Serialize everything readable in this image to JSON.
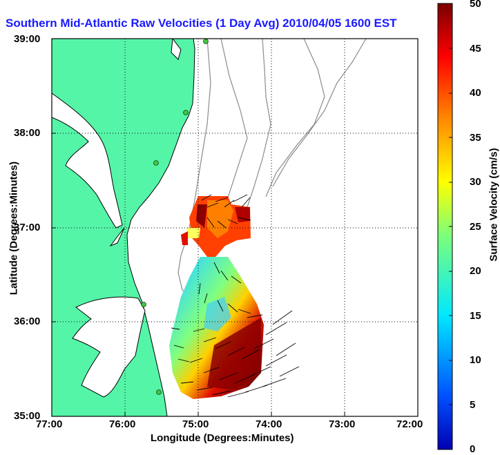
{
  "title": "Southern Mid-Atlantic Raw Velocities (1 Day Avg) 2010/04/05 1600 EST",
  "xlabel": "Longitude (Degrees:Minutes)",
  "ylabel": "Latitude (Degrees:Minutes)",
  "colorbar_label": "Surface Velocity (cm/s)",
  "x_ticks": [
    "77:00",
    "76:00",
    "75:00",
    "74:00",
    "73:00",
    "72:00"
  ],
  "y_ticks": [
    "39:00",
    "38:00",
    "37:00",
    "36:00",
    "35:00"
  ],
  "colorbar_ticks": [
    "50",
    "45",
    "40",
    "35",
    "30",
    "25",
    "20",
    "15",
    "10",
    "5",
    "0"
  ],
  "colors": {
    "land": "#55f5a8",
    "water": "#ffffff",
    "coastline": "#000000",
    "bathymetry": "#8a8a8a",
    "title": "#1a1aff",
    "station": "#3ec83e"
  },
  "map_extent": {
    "lon_west": -77,
    "lon_east": -72,
    "lat_south": 35,
    "lat_north": 39
  },
  "velocity_range_cm_s": [
    0,
    50
  ],
  "colormap": "jet"
}
